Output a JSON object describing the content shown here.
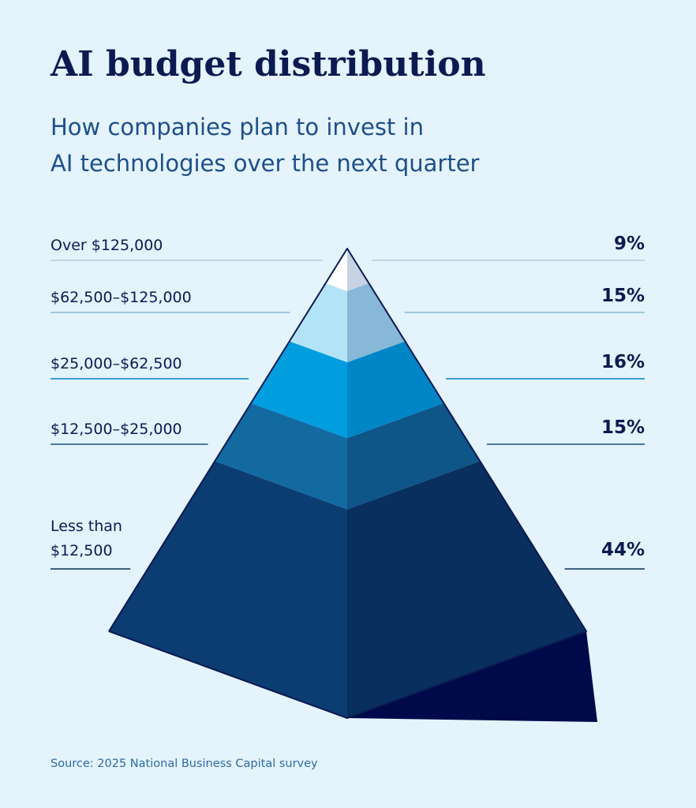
{
  "chart_data": {
    "type": "pyramid",
    "title": "AI budget distribution",
    "subtitle": "How companies plan to invest in\nAI technologies over the next quarter",
    "categories": [
      "Over $125,000",
      "$62,500–$125,000",
      "$25,000–$62,500",
      "$12,500–$25,000",
      "Less than\n$12,500"
    ],
    "values": [
      9,
      15,
      16,
      15,
      44
    ],
    "value_labels": [
      "9%",
      "15%",
      "16%",
      "15%",
      "44%"
    ],
    "colors": [
      "#ffffff",
      "#b3e3f6",
      "#009ddf",
      "#126aa1",
      "#0b3c72"
    ],
    "side_colors": [
      "#c7d2e3",
      "#87b8d7",
      "#0086c6",
      "#0e5588",
      "#082f5d"
    ],
    "source": "Source: 2025 National Business Capital survey"
  }
}
